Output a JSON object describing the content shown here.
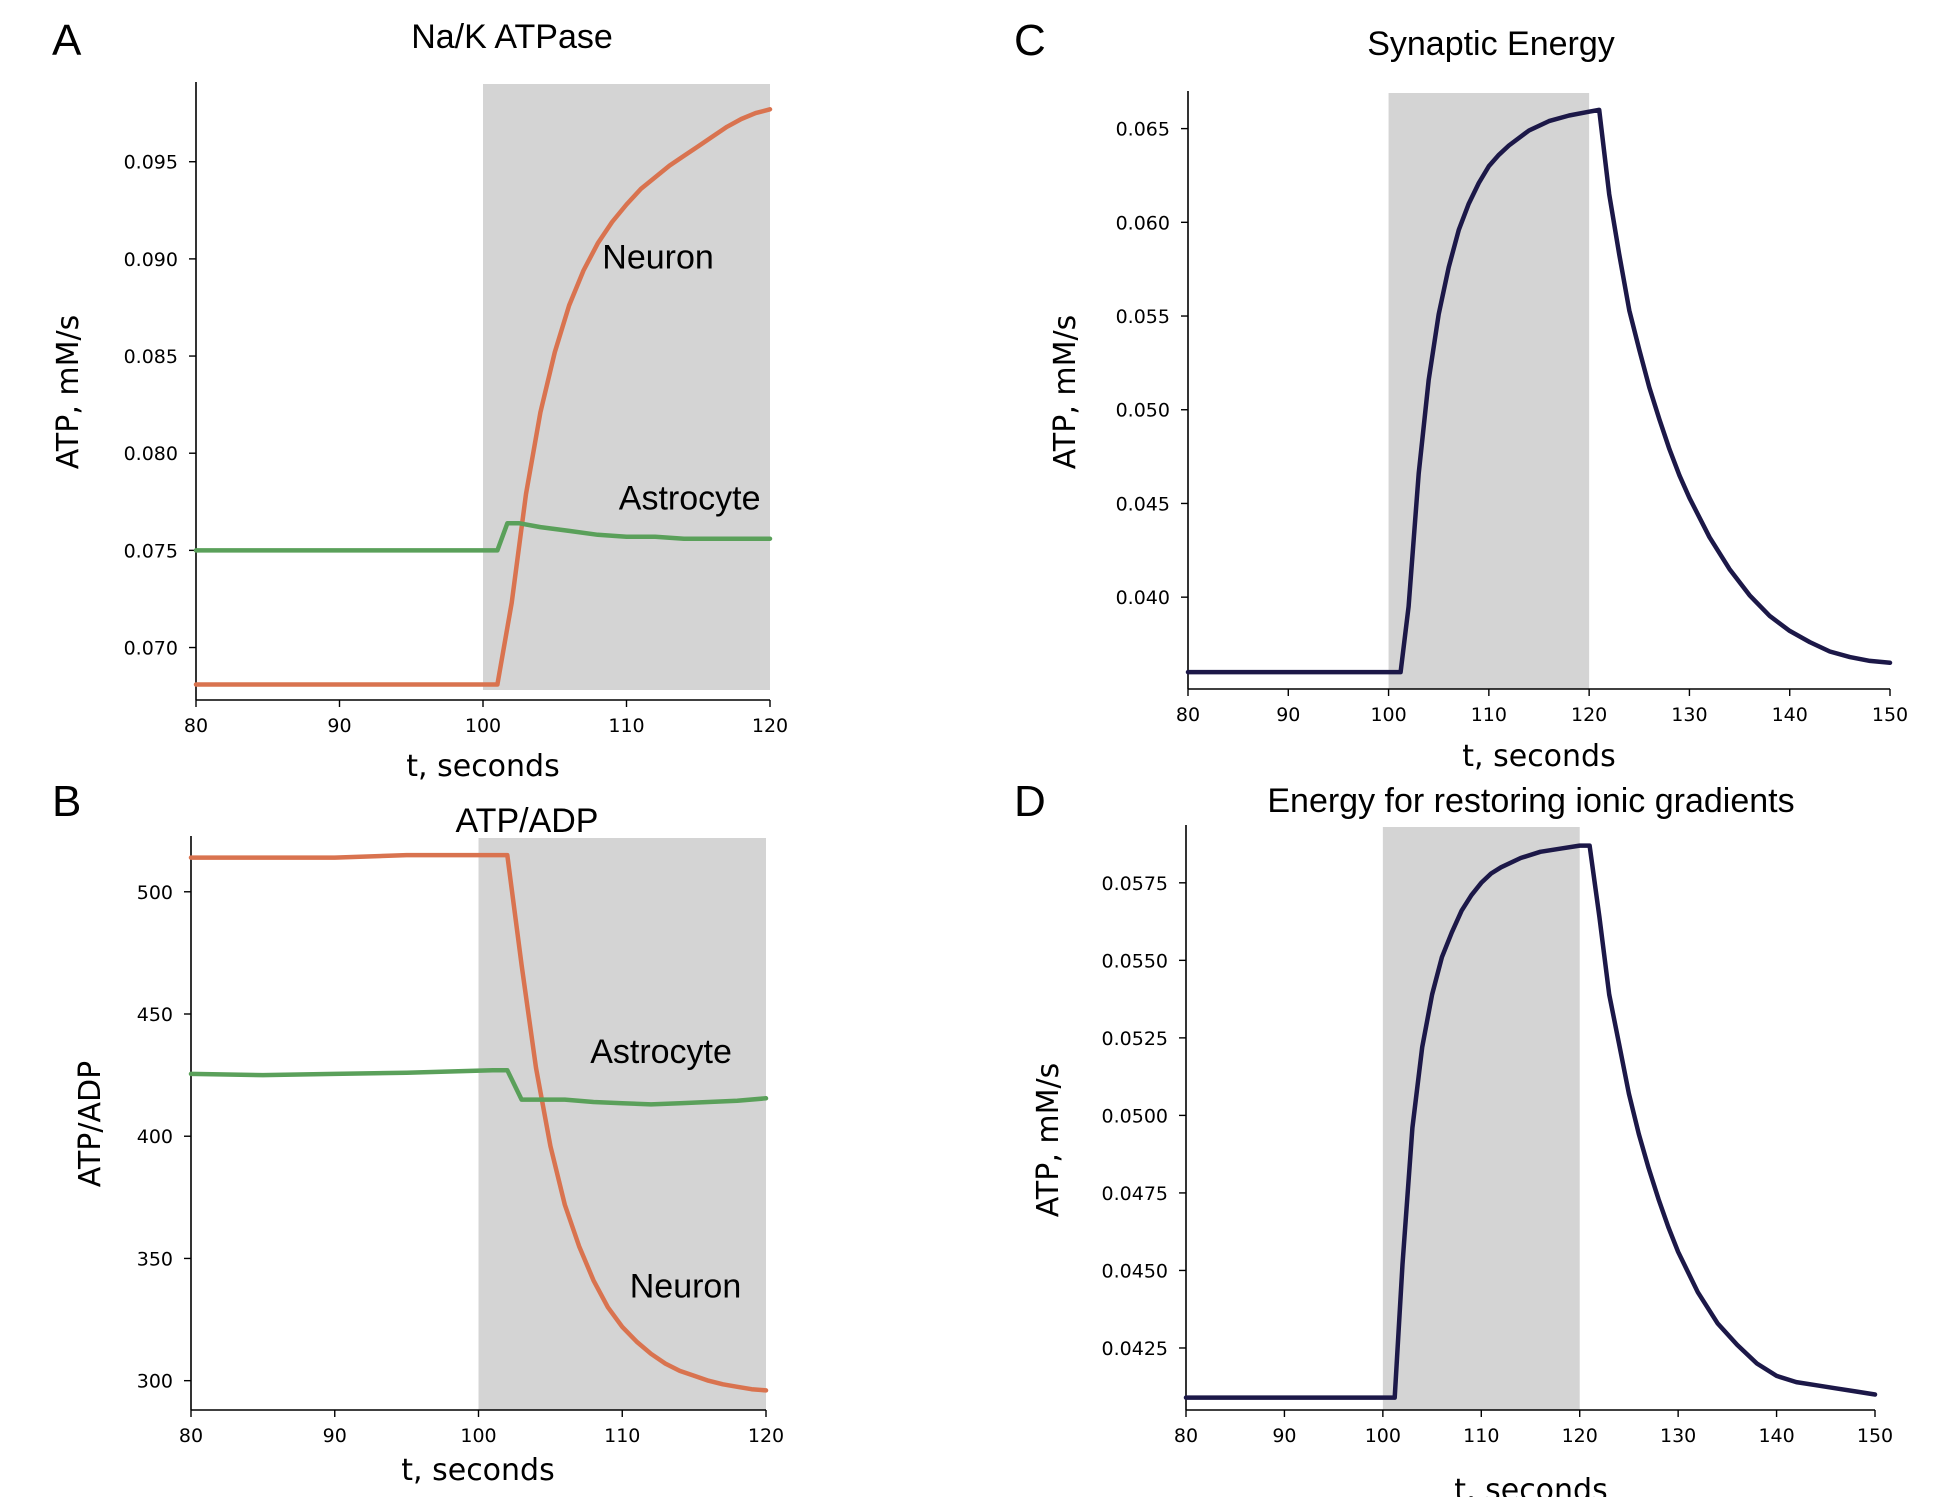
{
  "chart_data": [
    {
      "panel": "A",
      "type": "line",
      "title": "Na/K ATPase",
      "xlabel": "t, seconds",
      "ylabel": "ATP, mM/s",
      "xlim": [
        80,
        120
      ],
      "ylim": [
        0.0673,
        0.099
      ],
      "xticks": [
        80,
        90,
        100,
        110,
        120
      ],
      "xtick_labels": [
        "80",
        "90",
        "100",
        "110",
        "120"
      ],
      "yticks": [
        0.07,
        0.075,
        0.08,
        0.085,
        0.09,
        0.095
      ],
      "ytick_labels": [
        "0.070",
        "0.075",
        "0.080",
        "0.085",
        "0.090",
        "0.095"
      ],
      "shaded_region": [
        100,
        120
      ],
      "grid": false,
      "series": [
        {
          "name": "Neuron",
          "color": "#d9734f",
          "x": [
            80,
            101,
            102,
            103,
            104,
            105,
            106,
            107,
            108,
            109,
            110,
            111,
            112,
            113,
            114,
            115,
            116,
            117,
            118,
            119,
            120
          ],
          "y": [
            0.0681,
            0.0681,
            0.0723,
            0.0779,
            0.0821,
            0.0852,
            0.0876,
            0.0894,
            0.0908,
            0.0919,
            0.0928,
            0.0936,
            0.0942,
            0.0948,
            0.0953,
            0.0958,
            0.0963,
            0.0968,
            0.0972,
            0.0975,
            0.0977
          ]
        },
        {
          "name": "Astrocyte",
          "color": "#5aa05a",
          "x": [
            80,
            101,
            101.7,
            102.5,
            104,
            106,
            108,
            110,
            112,
            114,
            116,
            118,
            120
          ],
          "y": [
            0.075,
            0.075,
            0.0764,
            0.0764,
            0.0762,
            0.076,
            0.0758,
            0.0757,
            0.0757,
            0.0756,
            0.0756,
            0.0756,
            0.0756
          ]
        }
      ],
      "annotations": [
        {
          "text": "Neuron",
          "x": 112.2,
          "y": 0.0895
        },
        {
          "text": "Astrocyte",
          "x": 114.4,
          "y": 0.0771
        }
      ]
    },
    {
      "panel": "B",
      "type": "line",
      "title": "ATP/ADP",
      "xlabel": "t, seconds",
      "ylabel": "ATP/ADP",
      "xlim": [
        80,
        120
      ],
      "ylim": [
        288,
        522
      ],
      "xticks": [
        80,
        90,
        100,
        110,
        120
      ],
      "xtick_labels": [
        "80",
        "90",
        "100",
        "110",
        "120"
      ],
      "yticks": [
        300,
        350,
        400,
        450,
        500
      ],
      "ytick_labels": [
        "300",
        "350",
        "400",
        "450",
        "500"
      ],
      "shaded_region": [
        100,
        120
      ],
      "grid": false,
      "series": [
        {
          "name": "Neuron",
          "color": "#d9734f",
          "x": [
            80,
            85,
            90,
            95,
            102,
            103,
            104,
            105,
            106,
            107,
            108,
            109,
            110,
            111,
            112,
            113,
            114,
            115,
            116,
            117,
            118,
            119,
            120
          ],
          "y": [
            514,
            514,
            514,
            515,
            515,
            470,
            428,
            396,
            372,
            355,
            341,
            330,
            322,
            316,
            311,
            307,
            304,
            302,
            300,
            298.5,
            297.5,
            296.5,
            296
          ]
        },
        {
          "name": "Astrocyte",
          "color": "#5aa05a",
          "x": [
            80,
            85,
            90,
            95,
            101,
            102,
            103,
            104,
            106,
            108,
            110,
            112,
            114,
            116,
            118,
            120
          ],
          "y": [
            425.5,
            425,
            425.5,
            426,
            427,
            427,
            415,
            415,
            415,
            414,
            413.5,
            413,
            413.5,
            414,
            414.5,
            415.5
          ]
        }
      ],
      "annotations": [
        {
          "text": "Astrocyte",
          "x": 112.7,
          "y": 430
        },
        {
          "text": "Neuron",
          "x": 114.4,
          "y": 334
        }
      ]
    },
    {
      "panel": "C",
      "type": "line",
      "title": "Synaptic Energy",
      "xlabel": "t, seconds",
      "ylabel": "ATP, mM/s",
      "xlim": [
        80,
        150
      ],
      "ylim": [
        0.0351,
        0.0669
      ],
      "xticks": [
        80,
        90,
        100,
        110,
        120,
        130,
        140,
        150
      ],
      "xtick_labels": [
        "80",
        "90",
        "100",
        "110",
        "120",
        "130",
        "140",
        "150"
      ],
      "yticks": [
        0.04,
        0.045,
        0.05,
        0.055,
        0.06,
        0.065
      ],
      "ytick_labels": [
        "0.040",
        "0.045",
        "0.050",
        "0.055",
        "0.060",
        "0.065"
      ],
      "shaded_region": [
        100,
        120
      ],
      "grid": false,
      "series": [
        {
          "name": "",
          "color": "#1c1848",
          "x": [
            80,
            101.2,
            102,
            103,
            104,
            105,
            106,
            107,
            108,
            109,
            110,
            111,
            112,
            114,
            116,
            118,
            120,
            121,
            122,
            123,
            124,
            125,
            126,
            127,
            128,
            129,
            130,
            132,
            134,
            136,
            138,
            140,
            142,
            144,
            146,
            148,
            150
          ],
          "y": [
            0.036,
            0.036,
            0.0395,
            0.0466,
            0.0516,
            0.0551,
            0.0576,
            0.0596,
            0.061,
            0.0621,
            0.063,
            0.0636,
            0.0641,
            0.0649,
            0.0654,
            0.0657,
            0.0659,
            0.066,
            0.0615,
            0.0583,
            0.0553,
            0.0532,
            0.0512,
            0.0495,
            0.0479,
            0.0465,
            0.0453,
            0.0432,
            0.0415,
            0.0401,
            0.039,
            0.0382,
            0.0376,
            0.0371,
            0.0368,
            0.0366,
            0.0365
          ]
        }
      ],
      "annotations": []
    },
    {
      "panel": "D",
      "type": "line",
      "title": "Energy for restoring ionic gradients",
      "xlabel": "t, seconds",
      "ylabel": "ATP, mM/s",
      "xlim": [
        80,
        150
      ],
      "ylim": [
        0.0405,
        0.0593
      ],
      "xticks": [
        80,
        90,
        100,
        110,
        120,
        130,
        140,
        150
      ],
      "xtick_labels": [
        "80",
        "90",
        "100",
        "110",
        "120",
        "130",
        "140",
        "150"
      ],
      "yticks": [
        0.0425,
        0.045,
        0.0475,
        0.05,
        0.0525,
        0.055,
        0.0575
      ],
      "ytick_labels": [
        "0.0425",
        "0.0450",
        "0.0475",
        "0.0500",
        "0.0525",
        "0.0550",
        "0.0575"
      ],
      "shaded_region": [
        100,
        120
      ],
      "grid": false,
      "series": [
        {
          "name": "",
          "color": "#1c1848",
          "x": [
            80,
            101.2,
            102,
            103,
            104,
            105,
            106,
            107,
            108,
            109,
            110,
            111,
            112,
            114,
            116,
            118,
            120,
            121,
            122,
            123,
            124,
            125,
            126,
            127,
            128,
            129,
            130,
            132,
            134,
            136,
            138,
            140,
            142,
            144,
            146,
            148,
            150
          ],
          "y": [
            0.0409,
            0.0409,
            0.0452,
            0.0496,
            0.0522,
            0.0539,
            0.0551,
            0.0559,
            0.0566,
            0.0571,
            0.0575,
            0.0578,
            0.058,
            0.0583,
            0.0585,
            0.0586,
            0.0587,
            0.0587,
            0.0564,
            0.0539,
            0.0523,
            0.0507,
            0.0494,
            0.0483,
            0.0473,
            0.0464,
            0.0456,
            0.0443,
            0.0433,
            0.0426,
            0.042,
            0.0416,
            0.0414,
            0.0413,
            0.0412,
            0.0411,
            0.041
          ]
        }
      ],
      "annotations": []
    }
  ]
}
